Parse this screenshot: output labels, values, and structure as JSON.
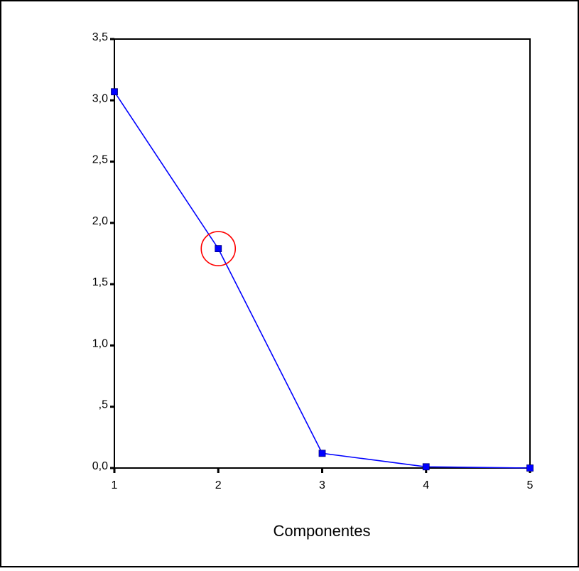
{
  "chart_data": {
    "type": "line",
    "xlabel": "Componentes",
    "ylabel": "",
    "x": [
      1,
      2,
      3,
      4,
      5
    ],
    "series": [
      {
        "values": [
          3.07,
          1.79,
          0.12,
          0.01,
          0.0
        ]
      }
    ],
    "xlim": [
      1,
      5
    ],
    "ylim": [
      0.0,
      3.5
    ],
    "x_ticks": [
      "1",
      "2",
      "3",
      "4",
      "5"
    ],
    "y_ticks": [
      {
        "value": 0.0,
        "label": "0,0"
      },
      {
        "value": 0.5,
        "label": ",5"
      },
      {
        "value": 1.0,
        "label": "1,0"
      },
      {
        "value": 1.5,
        "label": "1,5"
      },
      {
        "value": 2.0,
        "label": "2,0"
      },
      {
        "value": 2.5,
        "label": "2,5"
      },
      {
        "value": 3.0,
        "label": "3,0"
      },
      {
        "value": 3.5,
        "label": "3,5"
      }
    ],
    "grid": false,
    "line_color": "#0000ff",
    "marker": "square",
    "highlight": {
      "x": 2,
      "value": 1.79,
      "shape": "circle",
      "color": "#ff0000"
    }
  }
}
